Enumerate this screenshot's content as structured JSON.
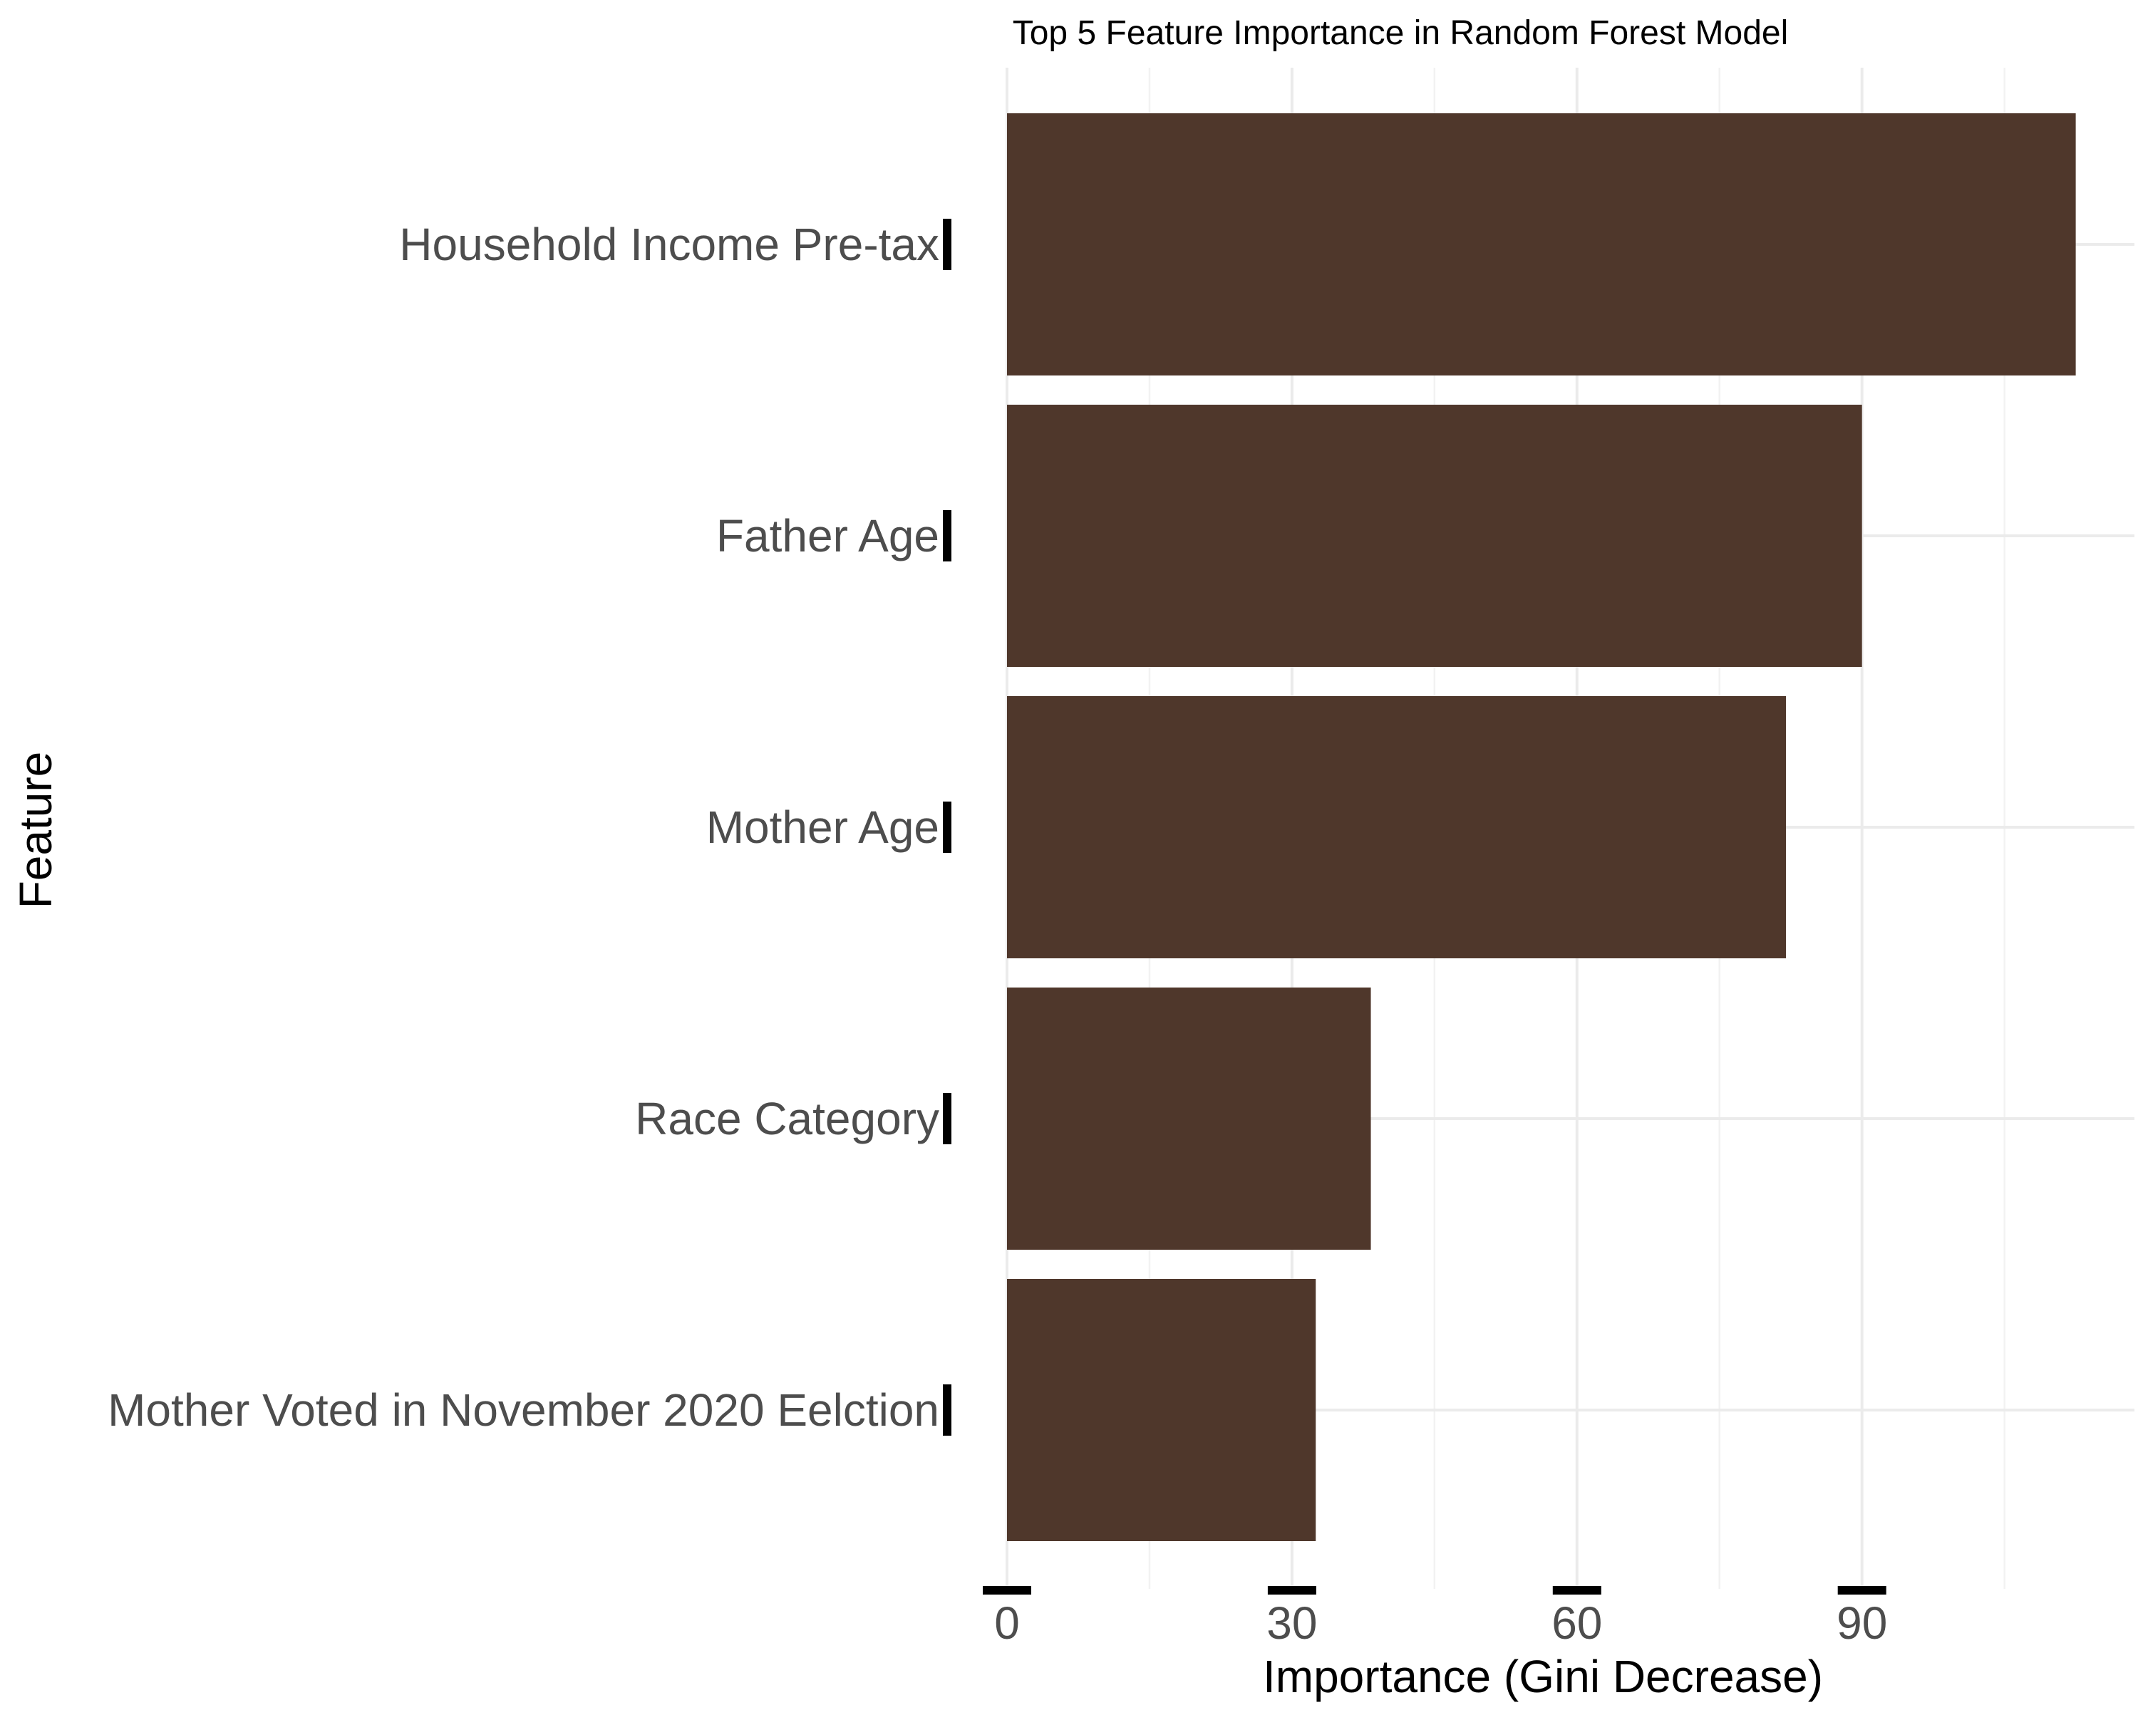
{
  "chart_data": {
    "type": "bar",
    "orientation": "horizontal",
    "title": "Top 5 Feature Importance in Random Forest Model",
    "xlabel": "Importance (Gini Decrease)",
    "ylabel": "Feature",
    "categories": [
      "Household Income Pre-tax",
      "Father Age",
      "Mother Age",
      "Race Category",
      "Mother Voted in November 2020 Eelction"
    ],
    "values": [
      112.5,
      90,
      82,
      38.3,
      32.5
    ],
    "xticks": [
      0,
      30,
      60,
      90
    ],
    "xlim": [
      0,
      118
    ],
    "bar_color": "#4f372b",
    "grid": true,
    "legend": "none"
  }
}
